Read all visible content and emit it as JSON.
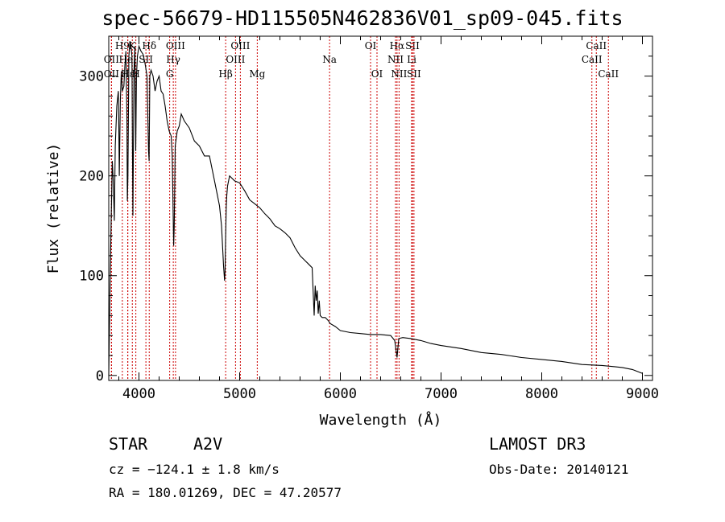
{
  "chart_data": {
    "type": "line",
    "title": "spec-56679-HD115505N462836V01_sp09-045.fits",
    "xlabel": "Wavelength (Å)",
    "ylabel": "Flux (relative)",
    "xlim": [
      3700,
      9100
    ],
    "ylim": [
      -5,
      340
    ],
    "xticks": [
      4000,
      5000,
      6000,
      7000,
      8000,
      9000
    ],
    "yticks": [
      0,
      100,
      200,
      300
    ],
    "series": [
      {
        "name": "flux",
        "x": [
          3700,
          3710,
          3725,
          3735,
          3745,
          3755,
          3765,
          3780,
          3795,
          3800,
          3805,
          3815,
          3825,
          3835,
          3850,
          3860,
          3870,
          3880,
          3885,
          3890,
          3900,
          3910,
          3920,
          3930,
          3935,
          3940,
          3950,
          3960,
          3968,
          3975,
          3985,
          4000,
          4020,
          4040,
          4060,
          4080,
          4095,
          4101,
          4108,
          4120,
          4140,
          4160,
          4180,
          4200,
          4220,
          4240,
          4260,
          4280,
          4300,
          4320,
          4330,
          4340,
          4345,
          4350,
          4360,
          4380,
          4400,
          4420,
          4450,
          4500,
          4550,
          4600,
          4650,
          4700,
          4750,
          4800,
          4820,
          4840,
          4850,
          4855,
          4861,
          4867,
          4872,
          4880,
          4900,
          4950,
          5000,
          5050,
          5100,
          5150,
          5200,
          5250,
          5300,
          5350,
          5400,
          5450,
          5500,
          5550,
          5600,
          5650,
          5700,
          5720,
          5740,
          5750,
          5760,
          5770,
          5780,
          5790,
          5800,
          5820,
          5850,
          5880,
          5900,
          5950,
          6000,
          6100,
          6200,
          6300,
          6400,
          6500,
          6540,
          6563,
          6580,
          6620,
          6700,
          6800,
          6900,
          7000,
          7200,
          7400,
          7600,
          7800,
          8000,
          8200,
          8400,
          8600,
          8800,
          8900,
          9000
        ],
        "values": [
          0,
          75,
          160,
          215,
          195,
          155,
          230,
          270,
          285,
          250,
          200,
          275,
          305,
          285,
          290,
          310,
          325,
          260,
          175,
          200,
          320,
          335,
          330,
          320,
          230,
          160,
          305,
          330,
          225,
          300,
          320,
          330,
          325,
          322,
          313,
          300,
          225,
          215,
          300,
          306,
          300,
          285,
          295,
          300,
          285,
          282,
          270,
          255,
          245,
          240,
          220,
          160,
          130,
          150,
          230,
          245,
          250,
          262,
          255,
          248,
          235,
          230,
          220,
          220,
          195,
          170,
          150,
          110,
          95,
          105,
          140,
          170,
          180,
          190,
          200,
          195,
          193,
          185,
          176,
          172,
          168,
          162,
          157,
          150,
          147,
          143,
          138,
          128,
          120,
          115,
          110,
          108,
          60,
          90,
          75,
          85,
          62,
          75,
          60,
          58,
          58,
          55,
          52,
          49,
          45,
          43,
          42,
          41,
          41,
          40,
          35,
          18,
          37,
          38,
          37,
          35,
          32,
          30,
          27,
          23,
          21,
          18,
          16,
          14,
          11,
          10,
          8,
          6,
          2
        ]
      }
    ],
    "lines": [
      {
        "name": "OII",
        "x": 3727,
        "row": 1
      },
      {
        "name": "OII",
        "x": 3727,
        "row": 2
      },
      {
        "name": "H9",
        "x": 3835,
        "row": 0
      },
      {
        "name": "HeI",
        "x": 3889,
        "row": 1
      },
      {
        "name": "Hε",
        "x": 3889,
        "row": 2
      },
      {
        "name": "K",
        "x": 3934,
        "row": 0
      },
      {
        "name": "SII",
        "x": 4069,
        "row": 1
      },
      {
        "name": "H",
        "x": 3969,
        "row": 2
      },
      {
        "name": "Hδ",
        "x": 4102,
        "row": 0
      },
      {
        "name": "OIII",
        "x": 4363,
        "row": 0
      },
      {
        "name": "Hγ",
        "x": 4341,
        "row": 1
      },
      {
        "name": "G",
        "x": 4305,
        "row": 2
      },
      {
        "name": "Hβ",
        "x": 4861,
        "row": 2
      },
      {
        "name": "OIII",
        "x": 5007,
        "row": 0
      },
      {
        "name": "OIII",
        "x": 4959,
        "row": 1
      },
      {
        "name": "Mg",
        "x": 5175,
        "row": 2
      },
      {
        "name": "Na",
        "x": 5893,
        "row": 1
      },
      {
        "name": "OI",
        "x": 6300,
        "row": 0
      },
      {
        "name": "OI",
        "x": 6364,
        "row": 2
      },
      {
        "name": "Hα",
        "x": 6563,
        "row": 0
      },
      {
        "name": "NII",
        "x": 6548,
        "row": 1
      },
      {
        "name": "NII",
        "x": 6583,
        "row": 2
      },
      {
        "name": "SII",
        "x": 6716,
        "row": 0
      },
      {
        "name": "Li",
        "x": 6708,
        "row": 1
      },
      {
        "name": "SII",
        "x": 6731,
        "row": 2
      },
      {
        "name": "CaII",
        "x": 8542,
        "row": 0
      },
      {
        "name": "CaII",
        "x": 8498,
        "row": 1
      },
      {
        "name": "CaII",
        "x": 8662,
        "row": 2
      }
    ]
  },
  "info": {
    "obj_class": "STAR",
    "subclass": "A2V",
    "survey": "LAMOST DR3",
    "cz": "cz = −124.1 ± 1.8 km/s",
    "obs_date": "Obs-Date: 20140121",
    "coords": "RA = 180.01269, DEC =  47.20577"
  },
  "colors": {
    "line_marker": "#cc0000",
    "spectrum": "#000000"
  }
}
